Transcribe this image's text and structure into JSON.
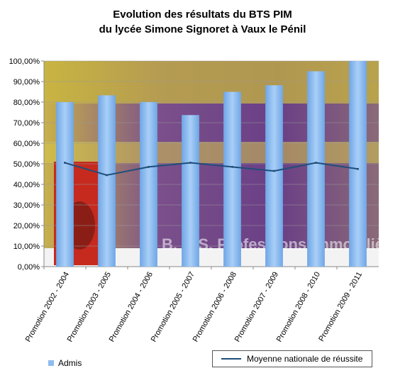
{
  "title_line1": "Evolution des résultats du BTS PIM",
  "title_line2": "du lycée Simone Signoret à Vaux le Pénil",
  "chart_data": {
    "type": "bar",
    "categories": [
      "Promotion 2002 - 2004",
      "Promotion 2003 - 2005",
      "Promotion 2004 - 2006",
      "Promotion 2005 - 2007",
      "Promotion 2006 - 2008",
      "Promotion 2007 - 2009",
      "Promotion 2008 - 2010",
      "Promotion 2009 - 2011"
    ],
    "series": [
      {
        "name": "Admis",
        "type": "bar",
        "color": "#8fbcef",
        "values": [
          80,
          83.3,
          80,
          73.7,
          85,
          88.2,
          95,
          100
        ]
      },
      {
        "name": "Moyenne nationale de réussite",
        "type": "line",
        "color": "#1f4e79",
        "values": [
          50.5,
          44.5,
          48.5,
          50.5,
          48.5,
          46.5,
          50.5,
          47.5
        ]
      }
    ],
    "ylim": [
      0,
      100
    ],
    "yticks": [
      "0,00%",
      "10,00%",
      "20,00%",
      "30,00%",
      "40,00%",
      "50,00%",
      "60,00%",
      "70,00%",
      "80,00%",
      "90,00%",
      "100,00%"
    ],
    "background_photo_text": "B. T. S. Professions Immobilières",
    "legend": [
      "Admis",
      "Moyenne nationale de réussite"
    ]
  }
}
